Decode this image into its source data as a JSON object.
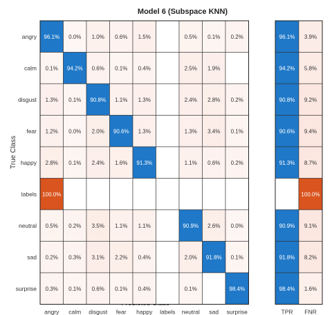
{
  "chart_data": {
    "type": "heatmap",
    "title": "Model 6 (Subspace KNN)",
    "xlabel": "Predicted Class",
    "ylabel": "True Class",
    "classes": [
      "angry",
      "calm",
      "disgust",
      "fear",
      "happy",
      "labels",
      "neutral",
      "sad",
      "surprise"
    ],
    "matrix": [
      [
        "96.1%",
        "0.0%",
        "1.0%",
        "0.6%",
        "1.5%",
        "",
        "0.5%",
        "0.1%",
        "0.2%"
      ],
      [
        "0.1%",
        "94.2%",
        "0.6%",
        "0.1%",
        "0.4%",
        "",
        "2.5%",
        "1.9%",
        ""
      ],
      [
        "1.3%",
        "0.1%",
        "90.8%",
        "1.1%",
        "1.3%",
        "",
        "2.4%",
        "2.8%",
        "0.2%"
      ],
      [
        "1.2%",
        "0.0%",
        "2.0%",
        "90.6%",
        "1.3%",
        "",
        "1.3%",
        "3.4%",
        "0.1%"
      ],
      [
        "2.8%",
        "0.1%",
        "2.4%",
        "1.6%",
        "91.3%",
        "",
        "1.1%",
        "0.6%",
        "0.2%"
      ],
      [
        "100.0%",
        "",
        "",
        "",
        "",
        "",
        "",
        "",
        ""
      ],
      [
        "0.5%",
        "0.2%",
        "3.5%",
        "1.1%",
        "1.1%",
        "",
        "90.9%",
        "2.6%",
        "0.0%"
      ],
      [
        "0.2%",
        "0.3%",
        "3.1%",
        "2.2%",
        "0.4%",
        "",
        "2.0%",
        "91.8%",
        "0.1%"
      ],
      [
        "0.3%",
        "0.1%",
        "0.6%",
        "0.1%",
        "0.4%",
        "",
        "0.1%",
        "",
        "98.4%"
      ]
    ],
    "summary_columns": [
      "TPR",
      "FNR"
    ],
    "summary": [
      [
        "96.1%",
        "3.9%"
      ],
      [
        "94.2%",
        "5.8%"
      ],
      [
        "90.8%",
        "9.2%"
      ],
      [
        "90.6%",
        "9.4%"
      ],
      [
        "91.3%",
        "8.7%"
      ],
      [
        "",
        "100.0%"
      ],
      [
        "90.9%",
        "9.1%"
      ],
      [
        "91.8%",
        "8.2%"
      ],
      [
        "98.4%",
        "1.6%"
      ]
    ],
    "colors": {
      "correct": "#1f78c8",
      "error_strong": "#d9541e",
      "error_light": "#fbe6df",
      "grid": "#333333"
    }
  }
}
